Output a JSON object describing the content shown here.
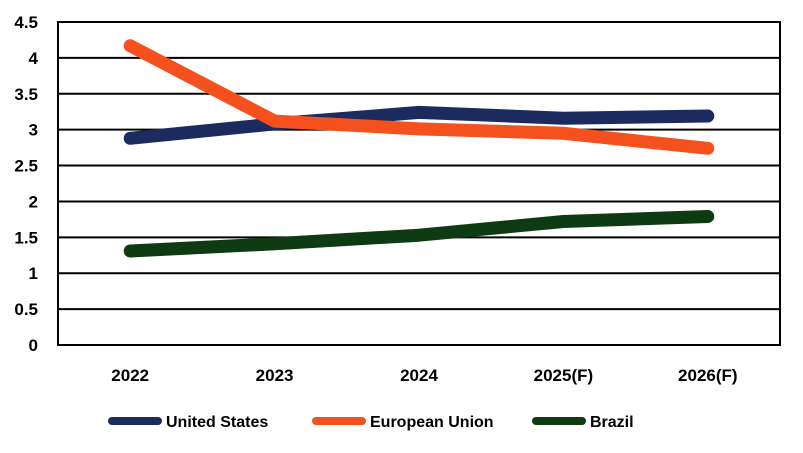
{
  "chart_data": {
    "type": "line",
    "title": "",
    "xlabel": "",
    "ylabel": "",
    "categories": [
      "2022",
      "2023",
      "2024",
      "2025(F)",
      "2026(F)"
    ],
    "ylim": [
      0,
      4.5
    ],
    "yticks": [
      "0",
      "0.5",
      "1",
      "1.5",
      "2",
      "2.5",
      "3",
      "3.5",
      "4",
      "4.5"
    ],
    "grid": true,
    "legend_position": "bottom",
    "series": [
      {
        "name": "United States",
        "color": "#1c2b5e",
        "values": [
          2.88,
          3.08,
          3.24,
          3.16,
          3.19
        ]
      },
      {
        "name": "European Union",
        "color": "#f4511e",
        "values": [
          4.17,
          3.12,
          3.01,
          2.95,
          2.74
        ]
      },
      {
        "name": "Brazil",
        "color": "#0f3b12",
        "values": [
          1.31,
          1.41,
          1.53,
          1.72,
          1.79
        ]
      }
    ]
  }
}
